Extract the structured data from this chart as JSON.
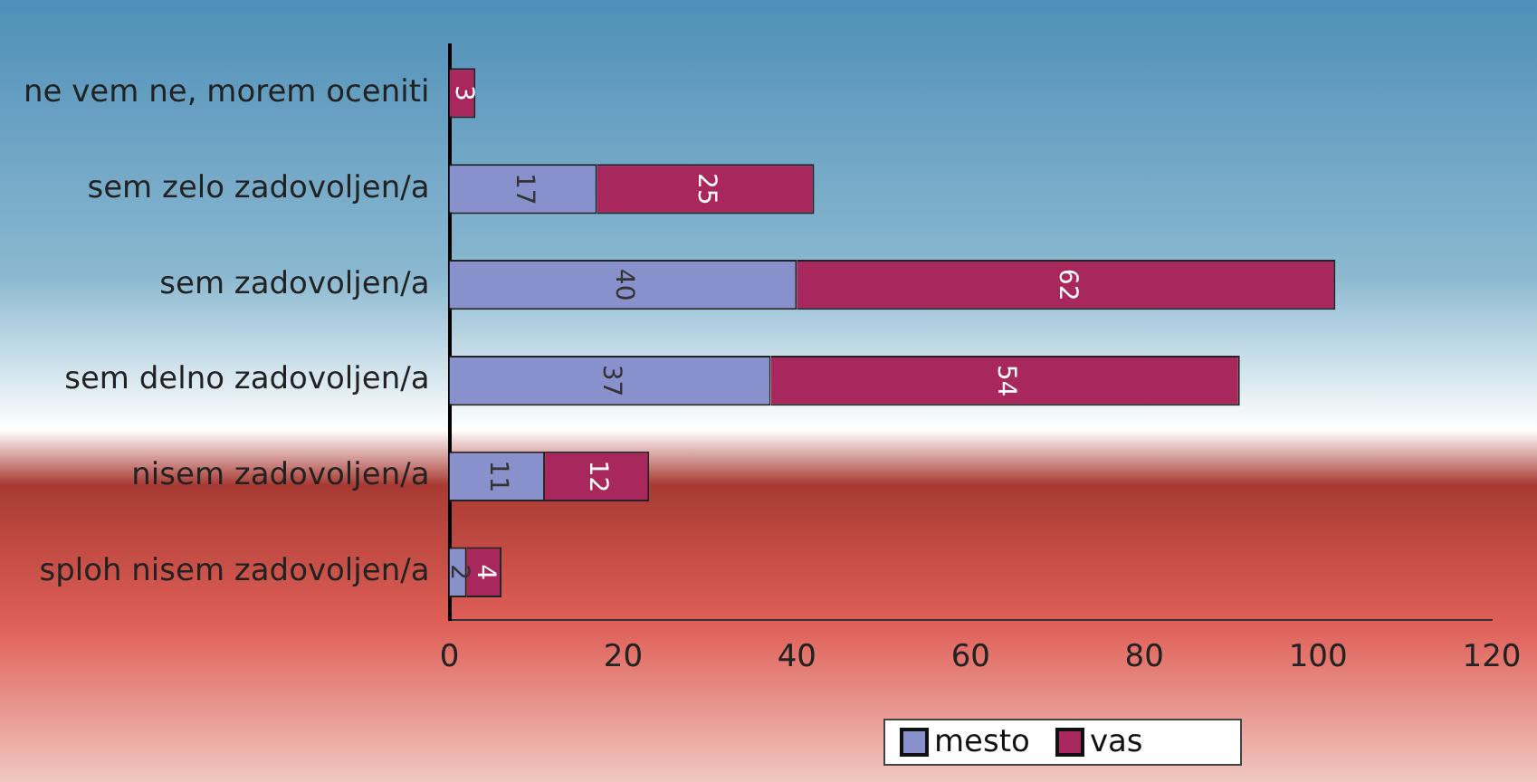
{
  "chart_data": {
    "type": "bar",
    "orientation": "horizontal",
    "stacked": true,
    "categories": [
      "ne vem ne, morem oceniti",
      "sem zelo zadovoljen/a",
      "sem zadovoljen/a",
      "sem delno zadovoljen/a",
      "nisem zadovoljen/a",
      "sploh nisem zadovoljen/a"
    ],
    "series": [
      {
        "name": "mesto",
        "color": "#8891cc",
        "values": [
          null,
          17,
          40,
          37,
          11,
          2
        ]
      },
      {
        "name": "vas",
        "color": "#a8285e",
        "values": [
          3,
          25,
          62,
          54,
          12,
          4
        ]
      }
    ],
    "xlim": [
      0,
      120
    ],
    "xticks": [
      0,
      20,
      40,
      60,
      80,
      100,
      120
    ],
    "grid": false,
    "legend": "bottom",
    "data_labels": true
  }
}
